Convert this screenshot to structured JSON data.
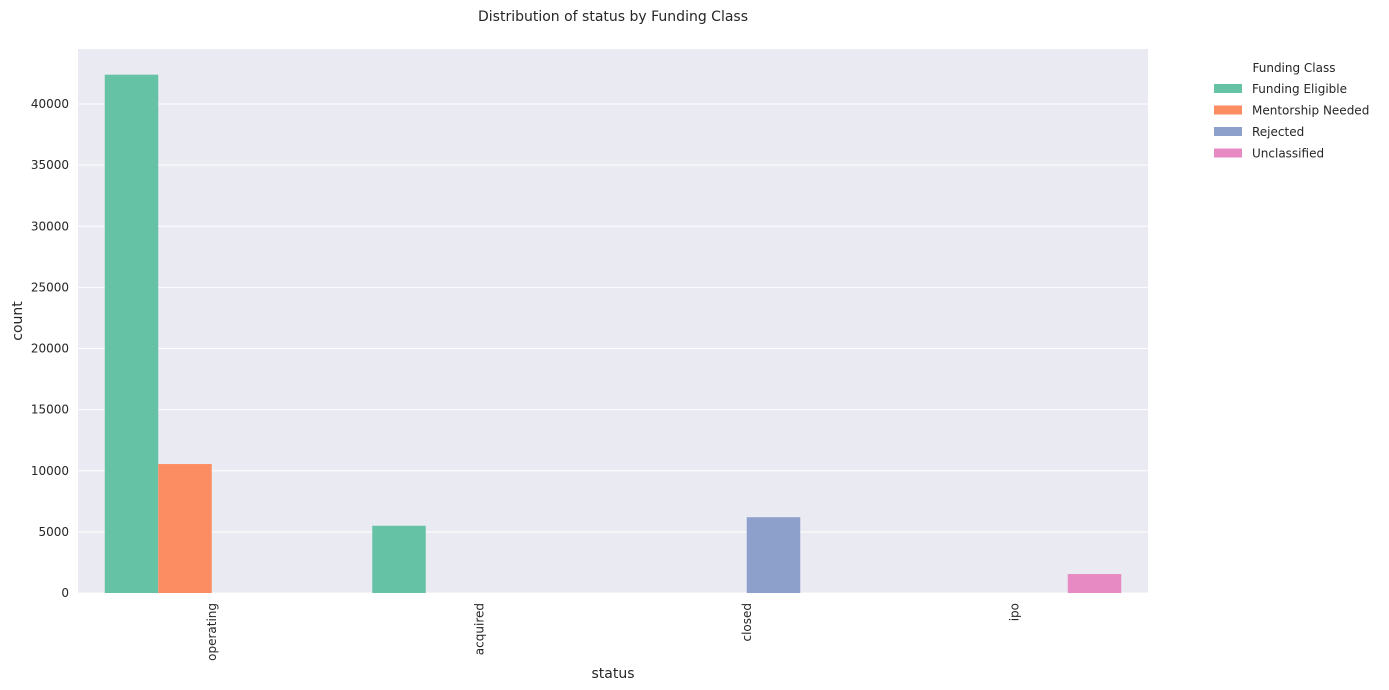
{
  "chart_data": {
    "type": "bar",
    "title": "Distribution of status by Funding Class",
    "xlabel": "status",
    "ylabel": "count",
    "categories": [
      "operating",
      "acquired",
      "closed",
      "ipo"
    ],
    "series": [
      {
        "name": "Funding Eligible",
        "color": "#66c2a5",
        "values": [
          42400,
          5500,
          0,
          0
        ]
      },
      {
        "name": "Mentorship Needed",
        "color": "#fc8d62",
        "values": [
          10550,
          0,
          0,
          0
        ]
      },
      {
        "name": "Rejected",
        "color": "#8da0cb",
        "values": [
          0,
          0,
          6200,
          0
        ]
      },
      {
        "name": "Unclassified",
        "color": "#e78ac3",
        "values": [
          0,
          0,
          0,
          1550
        ]
      }
    ],
    "ylim": [
      0,
      44500
    ],
    "yticks": [
      0,
      5000,
      10000,
      15000,
      20000,
      25000,
      30000,
      35000,
      40000
    ],
    "grid": true,
    "legend": {
      "title": "Funding Class",
      "placement": "outside-top-right"
    },
    "x_tick_rotation": "vertical"
  }
}
